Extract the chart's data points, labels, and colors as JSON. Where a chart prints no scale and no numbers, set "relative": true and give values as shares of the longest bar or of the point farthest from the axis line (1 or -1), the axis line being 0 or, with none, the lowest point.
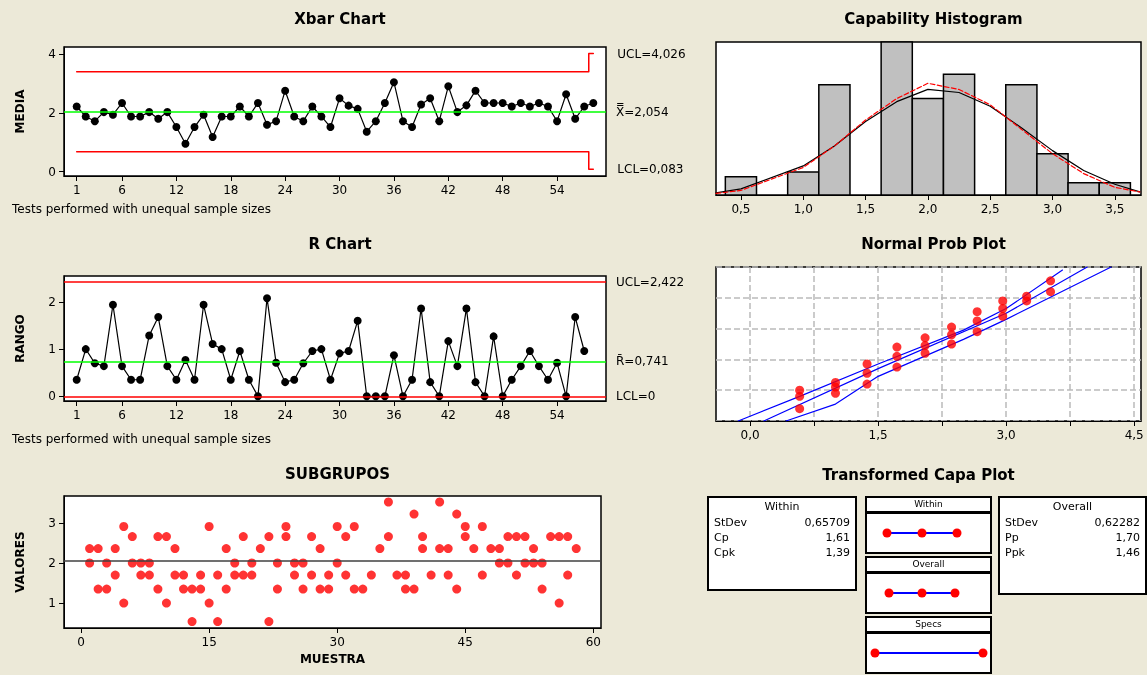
{
  "chart_data": [
    {
      "type": "line",
      "title": "Xbar Chart",
      "ylabel": "MEDIA",
      "marker": "circle",
      "xlim": [
        -0.4,
        59.4
      ],
      "xticks": [
        1,
        6,
        12,
        18,
        24,
        30,
        36,
        42,
        48,
        54
      ],
      "ylim": [
        -0.15,
        4.25
      ],
      "yticks": [
        0,
        2,
        4
      ],
      "x": [
        1,
        2,
        3,
        4,
        5,
        6,
        7,
        8,
        9,
        10,
        11,
        12,
        13,
        14,
        15,
        16,
        17,
        18,
        19,
        20,
        21,
        22,
        23,
        24,
        25,
        26,
        27,
        28,
        29,
        30,
        31,
        32,
        33,
        34,
        35,
        36,
        37,
        38,
        39,
        40,
        41,
        42,
        43,
        44,
        45,
        46,
        47,
        48,
        49,
        50,
        51,
        52,
        53,
        54,
        55,
        56,
        57,
        58
      ],
      "series": [
        {
          "color": "#000000",
          "values": [
            2.22,
            1.88,
            1.72,
            2.03,
            1.94,
            2.34,
            1.88,
            1.88,
            2.03,
            1.8,
            2.03,
            1.52,
            0.95,
            1.52,
            1.94,
            1.18,
            1.88,
            1.88,
            2.22,
            1.88,
            2.34,
            1.6,
            1.72,
            2.76,
            1.88,
            1.72,
            2.22,
            1.88,
            1.52,
            2.5,
            2.25,
            2.14,
            1.36,
            1.72,
            2.34,
            3.05,
            1.72,
            1.52,
            2.29,
            2.5,
            1.72,
            2.91,
            2.03,
            2.26,
            2.76,
            2.34,
            2.34,
            2.34,
            2.22,
            2.34,
            2.22,
            2.34,
            2.22,
            1.72,
            2.64,
            1.8,
            2.22,
            2.34
          ]
        },
        {
          "type": "step",
          "name": "UCL=4,026",
          "color": "#ff0000",
          "marker": "none",
          "x": [
            1,
            57.5,
            58
          ],
          "values": [
            3.41,
            4.026,
            4.026
          ]
        },
        {
          "type": "step",
          "name": "LCL=0,083",
          "color": "#ff0000",
          "marker": "none",
          "x": [
            1,
            57.5,
            58
          ],
          "values": [
            0.68,
            0.083,
            0.083
          ]
        }
      ],
      "ref_lines": [
        {
          "axis": "y",
          "value": 2.054,
          "label": "X̿=2,054",
          "color": "#00ff00"
        }
      ],
      "annotations": [
        "Tests performed with unequal sample sizes"
      ]
    },
    {
      "type": "line",
      "title": "R Chart",
      "ylabel": "RANGO",
      "marker": "circle",
      "xlim": [
        -0.4,
        59.4
      ],
      "xticks": [
        1,
        6,
        12,
        18,
        24,
        30,
        36,
        42,
        48,
        54
      ],
      "ylim": [
        -0.1,
        2.55
      ],
      "yticks": [
        0,
        1,
        2
      ],
      "x": [
        1,
        2,
        3,
        4,
        5,
        6,
        7,
        8,
        9,
        10,
        11,
        12,
        13,
        14,
        15,
        16,
        17,
        18,
        19,
        20,
        21,
        22,
        23,
        24,
        25,
        26,
        27,
        28,
        29,
        30,
        31,
        32,
        33,
        34,
        35,
        36,
        37,
        38,
        39,
        40,
        41,
        42,
        43,
        44,
        45,
        46,
        47,
        48,
        49,
        50,
        51,
        52,
        53,
        54,
        55,
        56,
        57
      ],
      "series": [
        {
          "color": "#000000",
          "values": [
            0.35,
            1.0,
            0.7,
            0.64,
            1.94,
            0.64,
            0.35,
            0.35,
            1.29,
            1.68,
            0.64,
            0.35,
            0.77,
            0.35,
            1.94,
            1.11,
            1.0,
            0.35,
            0.96,
            0.35,
            0,
            2.08,
            0.71,
            0.3,
            0.35,
            0.7,
            0.96,
            1.0,
            0.35,
            0.91,
            0.96,
            1.6,
            0,
            0,
            0,
            0.87,
            0,
            0.35,
            1.86,
            0.3,
            0,
            1.17,
            0.64,
            1.86,
            0.3,
            0,
            1.27,
            0,
            0.35,
            0.64,
            0.96,
            0.64,
            0.35,
            0.71,
            0,
            1.68,
            0.96
          ]
        }
      ],
      "ref_lines": [
        {
          "axis": "y",
          "value": 2.422,
          "label": "UCL=2,422",
          "color": "#ff0000"
        },
        {
          "axis": "y",
          "value": 0.741,
          "label": "R̄=0,741",
          "color": "#00ff00"
        },
        {
          "axis": "y",
          "value": 0,
          "label": "LCL=0",
          "color": "#ff0000"
        }
      ],
      "annotations": [
        "Tests performed with unequal sample sizes"
      ]
    },
    {
      "type": "scatter",
      "title": "SUBGRUPOS",
      "xlabel": "MUESTRA",
      "ylabel": "VALORES",
      "marker": "circle",
      "color": "#ff0000",
      "xlim": [
        -2,
        60.9
      ],
      "xticks": [
        0,
        15,
        30,
        45,
        60
      ],
      "ylim": [
        0.38,
        3.67
      ],
      "yticks": [
        1,
        2,
        3
      ],
      "x": [
        1,
        1,
        2,
        2,
        3,
        3,
        4,
        4,
        5,
        5,
        6,
        6,
        7,
        7,
        8,
        8,
        9,
        9,
        10,
        10,
        11,
        11,
        12,
        12,
        13,
        13,
        14,
        14,
        15,
        15,
        16,
        16,
        17,
        17,
        18,
        18,
        19,
        19,
        20,
        20,
        21,
        22,
        22,
        23,
        23,
        24,
        24,
        25,
        25,
        26,
        26,
        27,
        27,
        28,
        28,
        29,
        29,
        30,
        30,
        31,
        31,
        32,
        32,
        33,
        34,
        35,
        36,
        36,
        37,
        38,
        38,
        39,
        39,
        40,
        40,
        41,
        42,
        42,
        43,
        43,
        44,
        44,
        45,
        45,
        46,
        47,
        47,
        48,
        49,
        49,
        50,
        50,
        51,
        51,
        52,
        52,
        53,
        53,
        54,
        54,
        55,
        56,
        56,
        57,
        57,
        58
      ],
      "values": [
        2.36,
        2.0,
        2.36,
        1.35,
        2.0,
        1.35,
        2.36,
        1.7,
        2.91,
        1.0,
        2.66,
        2.0,
        2.0,
        1.7,
        2.0,
        1.7,
        2.66,
        1.35,
        2.66,
        1.0,
        2.36,
        1.7,
        1.7,
        1.35,
        1.35,
        0.54,
        1.7,
        1.35,
        2.91,
        1.0,
        1.7,
        0.54,
        2.36,
        1.35,
        2.0,
        1.7,
        2.66,
        1.7,
        2.0,
        1.7,
        2.36,
        2.66,
        0.54,
        2.0,
        1.35,
        2.91,
        2.66,
        2.0,
        1.7,
        2.0,
        1.35,
        2.66,
        1.7,
        2.36,
        1.35,
        1.7,
        1.35,
        2.91,
        2.0,
        2.66,
        1.7,
        2.91,
        1.35,
        1.35,
        1.7,
        2.36,
        3.52,
        2.66,
        1.7,
        1.7,
        1.35,
        3.22,
        1.35,
        2.66,
        2.36,
        1.7,
        3.52,
        2.36,
        2.36,
        1.7,
        3.22,
        1.35,
        2.91,
        2.66,
        2.36,
        2.91,
        1.7,
        2.36,
        2.36,
        2.0,
        2.66,
        2.0,
        2.66,
        1.7,
        2.66,
        2.0,
        2.36,
        2.0,
        2.0,
        1.35,
        2.66,
        2.66,
        1.0,
        2.66,
        1.7,
        2.36
      ],
      "ref_lines": [
        {
          "axis": "y",
          "value": 2.054,
          "color": "#404040"
        }
      ]
    },
    {
      "type": "histogram",
      "title": "Capability Histogram",
      "relative": true,
      "color": "#c0c0c0",
      "xlim": [
        0.3,
        3.71
      ],
      "xticks": [
        {
          "value": 0.5,
          "label": "0,5"
        },
        {
          "value": 1.0,
          "label": "1,0"
        },
        {
          "value": 1.5,
          "label": "1,5"
        },
        {
          "value": 2.0,
          "label": "2,0"
        },
        {
          "value": 2.5,
          "label": "2,5"
        },
        {
          "value": 3.0,
          "label": "3,0"
        },
        {
          "value": 3.5,
          "label": "3,5"
        }
      ],
      "bins": [
        0.375,
        0.625,
        0.875,
        1.125,
        1.375,
        1.625,
        1.875,
        2.125,
        2.375,
        2.625,
        2.875,
        3.125,
        3.375,
        3.625
      ],
      "values": [
        0.12,
        0,
        0.15,
        0.72,
        0,
        1,
        0.63,
        0.79,
        0,
        0.72,
        0.27,
        0.08,
        0.08
      ],
      "series": [
        {
          "type": "line",
          "color": "#000000",
          "marker": "none",
          "x": [
            0.3,
            0.5,
            1.0,
            1.25,
            1.5,
            1.75,
            2.0,
            2.25,
            2.5,
            2.75,
            3.0,
            3.25,
            3.5,
            3.7
          ],
          "values": [
            0.014,
            0.04,
            0.19,
            0.32,
            0.48,
            0.61,
            0.69,
            0.67,
            0.58,
            0.44,
            0.29,
            0.16,
            0.07,
            0.02
          ]
        },
        {
          "type": "line",
          "color": "#ff0000",
          "marker": "none",
          "line_style": "dashed",
          "x": [
            0.3,
            0.5,
            1.0,
            1.25,
            1.5,
            1.75,
            2.0,
            2.25,
            2.5,
            2.75,
            3.0,
            3.25,
            3.5,
            3.7
          ],
          "values": [
            0.01,
            0.03,
            0.18,
            0.32,
            0.49,
            0.63,
            0.73,
            0.69,
            0.59,
            0.43,
            0.27,
            0.14,
            0.05,
            0.02
          ]
        }
      ]
    },
    {
      "type": "scatter",
      "title": "Normal Prob Plot",
      "relative": true,
      "grid": true,
      "marker": "circle",
      "xlim": [
        -0.4,
        4.58
      ],
      "xticks": [
        {
          "value": 0,
          "label": "0,0"
        },
        {
          "value": 0.75,
          "label": null
        },
        {
          "value": 1.5,
          "label": "1,5"
        },
        {
          "value": 2.25,
          "label": null
        },
        {
          "value": 3.0,
          "label": "3,0"
        },
        {
          "value": 3.75,
          "label": null
        },
        {
          "value": 4.5,
          "label": "4,5"
        }
      ],
      "series": [
        {
          "type": "line",
          "color": "#0000ff",
          "marker": "none",
          "x": [
            -0.14,
            0.58,
            1.5,
            2.5,
            3.0,
            3.66
          ],
          "values": [
            0,
            0.16,
            0.37,
            0.59,
            0.73,
            0.98
          ]
        },
        {
          "type": "line",
          "color": "#0000ff",
          "marker": "none",
          "x": [
            0.16,
            1.5,
            3.0,
            3.95
          ],
          "values": [
            0,
            0.34,
            0.7,
            1
          ]
        },
        {
          "type": "line",
          "color": "#0000ff",
          "marker": "none",
          "x": [
            0.42,
            1.0,
            1.5,
            2.5,
            3.0,
            4.23
          ],
          "values": [
            0,
            0.11,
            0.29,
            0.53,
            0.66,
            1
          ]
        },
        {
          "type": "scatter",
          "color": "#ff0000",
          "x": [
            0.58,
            0.58,
            0.58,
            1.0,
            1.0,
            1.0,
            1.37,
            1.37,
            1.37,
            1.72,
            1.72,
            1.72,
            2.05,
            2.05,
            2.05,
            2.36,
            2.36,
            2.36,
            2.66,
            2.66,
            2.66,
            2.96,
            2.96,
            2.96,
            3.24,
            3.24,
            3.52,
            3.52
          ],
          "values": [
            0.2,
            0.16,
            0.08,
            0.25,
            0.22,
            0.18,
            0.37,
            0.31,
            0.24,
            0.48,
            0.42,
            0.35,
            0.54,
            0.49,
            0.44,
            0.61,
            0.56,
            0.5,
            0.71,
            0.65,
            0.58,
            0.78,
            0.73,
            0.68,
            0.81,
            0.78,
            0.91,
            0.84
          ]
        }
      ]
    },
    {
      "type": "other",
      "title": "Transformed Capa Plot",
      "annotations": [
        "Within",
        "StDev",
        "0,65709",
        "Cp",
        "1,61",
        "Cpk",
        "1,39",
        "Within",
        "Overall",
        "Specs",
        "Overall",
        "StDev",
        "0,62282",
        "Pp",
        "1,70",
        "Ppk",
        "1,46"
      ]
    }
  ]
}
